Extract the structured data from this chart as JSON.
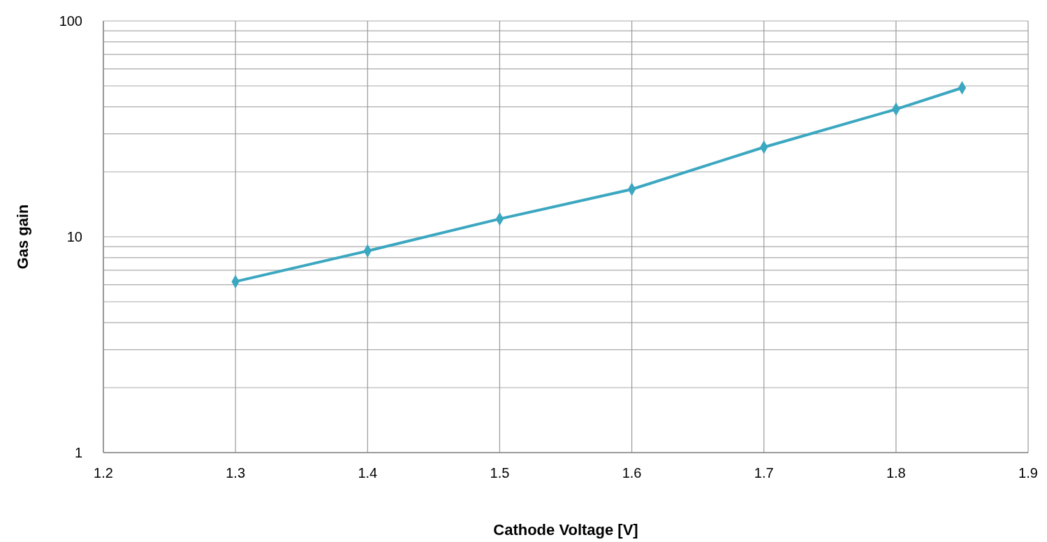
{
  "chart_data": {
    "type": "line",
    "xlabel": "Cathode Voltage [V]",
    "ylabel": "Gas gain",
    "log": "y",
    "grid": true,
    "marker": "diamond",
    "line_style": "solid",
    "x": [
      1.3,
      1.4,
      1.5,
      1.6,
      1.7,
      1.8,
      1.85
    ],
    "series": [
      {
        "color": "#3ba7c0",
        "values": [
          6.2,
          8.6,
          12.1,
          16.6,
          26,
          39,
          49
        ]
      }
    ],
    "xlim": [
      1.2,
      1.9
    ],
    "xticks": [
      {
        "value": 1.2,
        "label": "1.2"
      },
      {
        "value": 1.3,
        "label": "1.3"
      },
      {
        "value": 1.4,
        "label": "1.4"
      },
      {
        "value": 1.5,
        "label": "1.5"
      },
      {
        "value": 1.6,
        "label": "1.6"
      },
      {
        "value": 1.7,
        "label": "1.7"
      },
      {
        "value": 1.8,
        "label": "1.8"
      },
      {
        "value": 1.9,
        "label": "1.9"
      }
    ],
    "ylim": [
      1,
      100
    ],
    "yticks": [
      1,
      {
        "value": 2,
        "label": null
      },
      {
        "value": 3,
        "label": null
      },
      {
        "value": 4,
        "label": null
      },
      {
        "value": 5,
        "label": null
      },
      {
        "value": 6,
        "label": null
      },
      {
        "value": 7,
        "label": null
      },
      {
        "value": 8,
        "label": null
      },
      {
        "value": 9,
        "label": null
      },
      10,
      {
        "value": 20,
        "label": null
      },
      {
        "value": 30,
        "label": null
      },
      {
        "value": 40,
        "label": null
      },
      {
        "value": 50,
        "label": null
      },
      {
        "value": 60,
        "label": null
      },
      {
        "value": 70,
        "label": null
      },
      {
        "value": 80,
        "label": null
      },
      {
        "value": 90,
        "label": null
      },
      100
    ]
  }
}
